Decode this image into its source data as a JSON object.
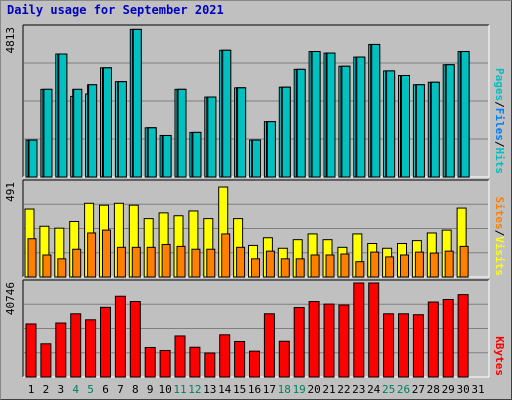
{
  "title": "Daily usage for September 2021",
  "colors": {
    "frame_bg": "#C0C0C0",
    "panel_bg": "#C0C0C0",
    "grid": "#808080",
    "hits": "#00E0E0",
    "files": "#0080FF",
    "pages": "#00C0C0",
    "visits": "#FFFF00",
    "sites": "#FF8000",
    "kbytes": "#FF0000",
    "weekday": "#000000",
    "weekend": "#00805F"
  },
  "chart_data": [
    {
      "type": "bar",
      "panel": "hits_files_pages",
      "max_label": "4813",
      "ylim": [
        0,
        4813
      ],
      "legend": [
        {
          "name": "Pages",
          "color": "#00C0C0"
        },
        {
          "name": "Files",
          "color": "#0080FF"
        },
        {
          "name": "Hits",
          "color": "#00C0C0"
        }
      ],
      "categories": [
        "1",
        "2",
        "3",
        "4",
        "5",
        "6",
        "7",
        "8",
        "9",
        "10",
        "11",
        "12",
        "13",
        "14",
        "15",
        "16",
        "17",
        "18",
        "19",
        "20",
        "21",
        "22",
        "23",
        "24",
        "25",
        "26",
        "27",
        "28",
        "29",
        "30",
        "31"
      ],
      "series": [
        {
          "name": "Hits",
          "values": [
            1200,
            2850,
            4000,
            2620,
            2700,
            3550,
            3100,
            4800,
            1600,
            1350,
            2850,
            1450,
            2600,
            4120,
            2900,
            1200,
            1800,
            2920,
            3500,
            4080,
            4030,
            3600,
            3900,
            4310,
            3450,
            3300,
            3000,
            3080,
            3650,
            4080,
            null
          ]
        },
        {
          "name": "Files",
          "values": [
            1200,
            2850,
            4000,
            2850,
            3000,
            3550,
            3100,
            4800,
            1600,
            1350,
            2850,
            1450,
            2600,
            4120,
            2900,
            1200,
            1800,
            2920,
            3500,
            4080,
            4030,
            3600,
            3900,
            4310,
            3450,
            3300,
            3000,
            3080,
            3650,
            4080,
            null
          ]
        },
        {
          "name": "Pages",
          "values": [
            1200,
            2850,
            4000,
            2850,
            3000,
            3550,
            3100,
            4800,
            1600,
            1350,
            2850,
            1450,
            2600,
            4120,
            2900,
            1200,
            1800,
            2920,
            3500,
            4080,
            4030,
            3600,
            3900,
            4310,
            3450,
            3300,
            3000,
            3080,
            3650,
            4080,
            null
          ]
        }
      ]
    },
    {
      "type": "bar",
      "panel": "visits_sites",
      "max_label": "491",
      "ylim": [
        0,
        491
      ],
      "legend": [
        {
          "name": "Sites",
          "color": "#FF8000"
        },
        {
          "name": "Visits",
          "color": "#FFFF00"
        }
      ],
      "categories": [
        "1",
        "2",
        "3",
        "4",
        "5",
        "6",
        "7",
        "8",
        "9",
        "10",
        "11",
        "12",
        "13",
        "14",
        "15",
        "16",
        "17",
        "18",
        "19",
        "20",
        "21",
        "22",
        "23",
        "24",
        "25",
        "26",
        "27",
        "28",
        "29",
        "30",
        "31"
      ],
      "series": [
        {
          "name": "Visits",
          "values": [
            355,
            265,
            255,
            290,
            385,
            375,
            385,
            375,
            305,
            335,
            320,
            345,
            305,
            470,
            305,
            165,
            205,
            150,
            195,
            225,
            195,
            155,
            225,
            175,
            150,
            175,
            190,
            230,
            245,
            360,
            null
          ]
        },
        {
          "name": "Sites",
          "values": [
            200,
            115,
            95,
            145,
            230,
            245,
            155,
            155,
            155,
            170,
            160,
            145,
            145,
            225,
            155,
            95,
            135,
            95,
            95,
            115,
            115,
            120,
            80,
            130,
            105,
            115,
            130,
            125,
            135,
            160,
            null
          ]
        }
      ]
    },
    {
      "type": "bar",
      "panel": "kbytes",
      "max_label": "40746",
      "ylim": [
        0,
        40746
      ],
      "legend": [
        {
          "name": "KBytes",
          "color": "#FF0000"
        }
      ],
      "categories": [
        "1",
        "2",
        "3",
        "4",
        "5",
        "6",
        "7",
        "8",
        "9",
        "10",
        "11",
        "12",
        "13",
        "14",
        "15",
        "16",
        "17",
        "18",
        "19",
        "20",
        "21",
        "22",
        "23",
        "24",
        "25",
        "26",
        "27",
        "28",
        "29",
        "30",
        "31"
      ],
      "series": [
        {
          "name": "KBytes",
          "values": [
            23000,
            14400,
            23400,
            27400,
            24800,
            30200,
            35000,
            32700,
            12800,
            11500,
            17800,
            12900,
            10400,
            18300,
            15400,
            11200,
            27400,
            15500,
            30100,
            32700,
            31600,
            31200,
            40746,
            40746,
            27400,
            27400,
            27000,
            32500,
            33600,
            35700,
            null
          ]
        }
      ]
    }
  ],
  "day_labels": [
    {
      "text": "1",
      "weekend": false
    },
    {
      "text": "2",
      "weekend": false
    },
    {
      "text": "3",
      "weekend": false
    },
    {
      "text": "4",
      "weekend": true
    },
    {
      "text": "5",
      "weekend": true
    },
    {
      "text": "6",
      "weekend": false
    },
    {
      "text": "7",
      "weekend": false
    },
    {
      "text": "8",
      "weekend": false
    },
    {
      "text": "9",
      "weekend": false
    },
    {
      "text": "10",
      "weekend": false
    },
    {
      "text": "11",
      "weekend": true
    },
    {
      "text": "12",
      "weekend": true
    },
    {
      "text": "13",
      "weekend": false
    },
    {
      "text": "14",
      "weekend": false
    },
    {
      "text": "15",
      "weekend": false
    },
    {
      "text": "16",
      "weekend": false
    },
    {
      "text": "17",
      "weekend": false
    },
    {
      "text": "18",
      "weekend": true
    },
    {
      "text": "19",
      "weekend": true
    },
    {
      "text": "20",
      "weekend": false
    },
    {
      "text": "21",
      "weekend": false
    },
    {
      "text": "22",
      "weekend": false
    },
    {
      "text": "23",
      "weekend": false
    },
    {
      "text": "24",
      "weekend": false
    },
    {
      "text": "25",
      "weekend": true
    },
    {
      "text": "26",
      "weekend": true
    },
    {
      "text": "27",
      "weekend": false
    },
    {
      "text": "28",
      "weekend": false
    },
    {
      "text": "29",
      "weekend": false
    },
    {
      "text": "30",
      "weekend": false
    },
    {
      "text": "31",
      "weekend": false
    }
  ]
}
